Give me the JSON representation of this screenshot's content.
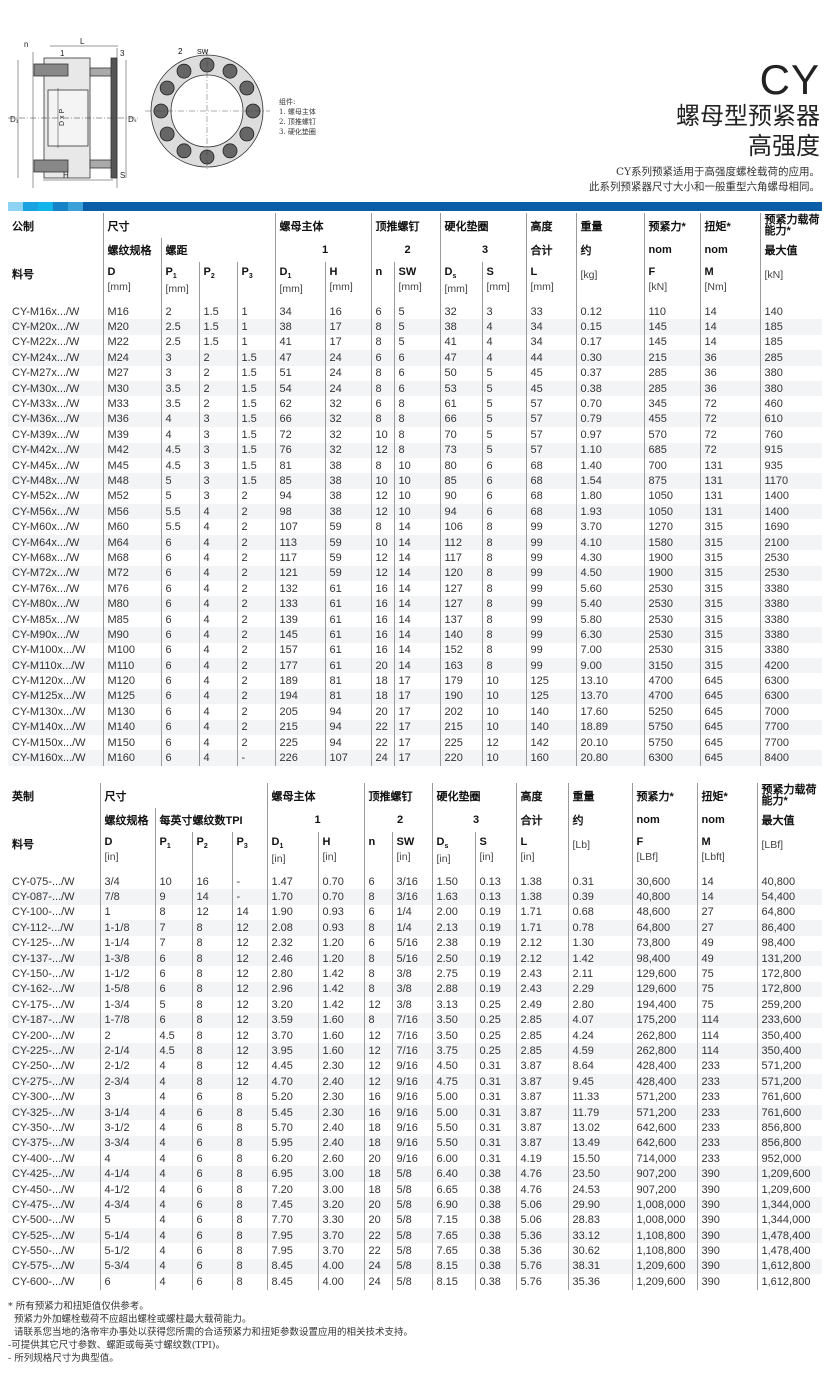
{
  "header": {
    "series": "CY",
    "title": "螺母型预紧器",
    "subtitle": "高强度",
    "description": [
      "CY系列预紧适用于高强度螺栓载荷的应用。",
      "此系列预紧器尺寸大小和一般重型六角螺母相同。"
    ]
  },
  "drawing": {
    "labels": {
      "n": "n",
      "L": "L",
      "one": "1",
      "three": "3",
      "two": "2",
      "SW": "SW",
      "D1": "D₁",
      "DxP": "D x P",
      "Ds": "Dₛ",
      "H": "H",
      "S": "S"
    },
    "legend": [
      "组件:",
      "1. 螺母主体",
      "2. 顶推螺钉",
      "3. 硬化垫圈"
    ]
  },
  "colors": {
    "brand_blue": "#0a5ea8",
    "bar_segments": [
      "#8fd3f4",
      "#1aa3e0",
      "#12b4ea",
      "#1583c6",
      "#3aa0d8"
    ]
  },
  "metric": {
    "h1": [
      "公制",
      "尺寸",
      "螺母主体",
      "顶推螺钉",
      "硬化垫圈",
      "高度",
      "重量",
      "预紧力*",
      "扭矩*",
      "预紧力载荷能力*"
    ],
    "h2": [
      "",
      "螺纹规格",
      "螺距",
      "1",
      "2",
      "3",
      "合计",
      "约",
      "nom",
      "nom",
      "最大值"
    ],
    "h3": [
      {
        "s": "料号"
      },
      {
        "s": "D",
        "u": "[mm]"
      },
      {
        "s": "P",
        "b": "1",
        "u": "[mm]"
      },
      {
        "s": "P",
        "b": "2"
      },
      {
        "s": "P",
        "b": "3"
      },
      {
        "s": "D",
        "b": "1",
        "u": "[mm]"
      },
      {
        "s": "H",
        "u": "[mm]"
      },
      {
        "s": "n"
      },
      {
        "s": "SW",
        "u": "[mm]"
      },
      {
        "s": "D",
        "b": "s",
        "u": "[mm]"
      },
      {
        "s": "S",
        "u": "[mm]"
      },
      {
        "s": "L",
        "u": "[mm]"
      },
      {
        "s": "",
        "u": "[kg]"
      },
      {
        "s": "F",
        "u": "[kN]"
      },
      {
        "s": "M",
        "u": "[Nm]"
      },
      {
        "s": "",
        "u": "[kN]"
      }
    ],
    "rows": [
      [
        "CY-M16x.../W",
        "M16",
        "2",
        "1.5",
        "1",
        "34",
        "16",
        "6",
        "5",
        "32",
        "3",
        "33",
        "0.12",
        "110",
        "14",
        "140"
      ],
      [
        "CY-M20x.../W",
        "M20",
        "2.5",
        "1.5",
        "1",
        "38",
        "17",
        "8",
        "5",
        "38",
        "4",
        "34",
        "0.15",
        "145",
        "14",
        "185"
      ],
      [
        "CY-M22x.../W",
        "M22",
        "2.5",
        "1.5",
        "1",
        "41",
        "17",
        "8",
        "5",
        "41",
        "4",
        "34",
        "0.17",
        "145",
        "14",
        "185"
      ],
      [
        "CY-M24x.../W",
        "M24",
        "3",
        "2",
        "1.5",
        "47",
        "24",
        "6",
        "6",
        "47",
        "4",
        "44",
        "0.30",
        "215",
        "36",
        "285"
      ],
      [
        "CY-M27x.../W",
        "M27",
        "3",
        "2",
        "1.5",
        "51",
        "24",
        "8",
        "6",
        "50",
        "5",
        "45",
        "0.37",
        "285",
        "36",
        "380"
      ],
      [
        "CY-M30x.../W",
        "M30",
        "3.5",
        "2",
        "1.5",
        "54",
        "24",
        "8",
        "6",
        "53",
        "5",
        "45",
        "0.38",
        "285",
        "36",
        "380"
      ],
      [
        "CY-M33x.../W",
        "M33",
        "3.5",
        "2",
        "1.5",
        "62",
        "32",
        "6",
        "8",
        "61",
        "5",
        "57",
        "0.70",
        "345",
        "72",
        "460"
      ],
      [
        "CY-M36x.../W",
        "M36",
        "4",
        "3",
        "1.5",
        "66",
        "32",
        "8",
        "8",
        "66",
        "5",
        "57",
        "0.79",
        "455",
        "72",
        "610"
      ],
      [
        "CY-M39x.../W",
        "M39",
        "4",
        "3",
        "1.5",
        "72",
        "32",
        "10",
        "8",
        "70",
        "5",
        "57",
        "0.97",
        "570",
        "72",
        "760"
      ],
      [
        "CY-M42x.../W",
        "M42",
        "4.5",
        "3",
        "1.5",
        "76",
        "32",
        "12",
        "8",
        "73",
        "5",
        "57",
        "1.10",
        "685",
        "72",
        "915"
      ],
      [
        "CY-M45x.../W",
        "M45",
        "4.5",
        "3",
        "1.5",
        "81",
        "38",
        "8",
        "10",
        "80",
        "6",
        "68",
        "1.40",
        "700",
        "131",
        "935"
      ],
      [
        "CY-M48x.../W",
        "M48",
        "5",
        "3",
        "1.5",
        "85",
        "38",
        "10",
        "10",
        "85",
        "6",
        "68",
        "1.54",
        "875",
        "131",
        "1170"
      ],
      [
        "CY-M52x.../W",
        "M52",
        "5",
        "3",
        "2",
        "94",
        "38",
        "12",
        "10",
        "90",
        "6",
        "68",
        "1.80",
        "1050",
        "131",
        "1400"
      ],
      [
        "CY-M56x.../W",
        "M56",
        "5.5",
        "4",
        "2",
        "98",
        "38",
        "12",
        "10",
        "94",
        "6",
        "68",
        "1.93",
        "1050",
        "131",
        "1400"
      ],
      [
        "CY-M60x.../W",
        "M60",
        "5.5",
        "4",
        "2",
        "107",
        "59",
        "8",
        "14",
        "106",
        "8",
        "99",
        "3.70",
        "1270",
        "315",
        "1690"
      ],
      [
        "CY-M64x.../W",
        "M64",
        "6",
        "4",
        "2",
        "113",
        "59",
        "10",
        "14",
        "112",
        "8",
        "99",
        "4.10",
        "1580",
        "315",
        "2100"
      ],
      [
        "CY-M68x.../W",
        "M68",
        "6",
        "4",
        "2",
        "117",
        "59",
        "12",
        "14",
        "117",
        "8",
        "99",
        "4.30",
        "1900",
        "315",
        "2530"
      ],
      [
        "CY-M72x.../W",
        "M72",
        "6",
        "4",
        "2",
        "121",
        "59",
        "12",
        "14",
        "120",
        "8",
        "99",
        "4.50",
        "1900",
        "315",
        "2530"
      ],
      [
        "CY-M76x.../W",
        "M76",
        "6",
        "4",
        "2",
        "132",
        "61",
        "16",
        "14",
        "127",
        "8",
        "99",
        "5.60",
        "2530",
        "315",
        "3380"
      ],
      [
        "CY-M80x.../W",
        "M80",
        "6",
        "4",
        "2",
        "133",
        "61",
        "16",
        "14",
        "127",
        "8",
        "99",
        "5.40",
        "2530",
        "315",
        "3380"
      ],
      [
        "CY-M85x.../W",
        "M85",
        "6",
        "4",
        "2",
        "139",
        "61",
        "16",
        "14",
        "137",
        "8",
        "99",
        "5.80",
        "2530",
        "315",
        "3380"
      ],
      [
        "CY-M90x.../W",
        "M90",
        "6",
        "4",
        "2",
        "145",
        "61",
        "16",
        "14",
        "140",
        "8",
        "99",
        "6.30",
        "2530",
        "315",
        "3380"
      ],
      [
        "CY-M100x.../W",
        "M100",
        "6",
        "4",
        "2",
        "157",
        "61",
        "16",
        "14",
        "152",
        "8",
        "99",
        "7.00",
        "2530",
        "315",
        "3380"
      ],
      [
        "CY-M110x.../W",
        "M110",
        "6",
        "4",
        "2",
        "177",
        "61",
        "20",
        "14",
        "163",
        "8",
        "99",
        "9.00",
        "3150",
        "315",
        "4200"
      ],
      [
        "CY-M120x.../W",
        "M120",
        "6",
        "4",
        "2",
        "189",
        "81",
        "18",
        "17",
        "179",
        "10",
        "125",
        "13.10",
        "4700",
        "645",
        "6300"
      ],
      [
        "CY-M125x.../W",
        "M125",
        "6",
        "4",
        "2",
        "194",
        "81",
        "18",
        "17",
        "190",
        "10",
        "125",
        "13.70",
        "4700",
        "645",
        "6300"
      ],
      [
        "CY-M130x.../W",
        "M130",
        "6",
        "4",
        "2",
        "205",
        "94",
        "20",
        "17",
        "202",
        "10",
        "140",
        "17.60",
        "5250",
        "645",
        "7000"
      ],
      [
        "CY-M140x.../W",
        "M140",
        "6",
        "4",
        "2",
        "215",
        "94",
        "22",
        "17",
        "215",
        "10",
        "140",
        "18.89",
        "5750",
        "645",
        "7700"
      ],
      [
        "CY-M150x.../W",
        "M150",
        "6",
        "4",
        "2",
        "225",
        "94",
        "22",
        "17",
        "225",
        "12",
        "142",
        "20.10",
        "5750",
        "645",
        "7700"
      ],
      [
        "CY-M160x.../W",
        "M160",
        "6",
        "4",
        "-",
        "226",
        "107",
        "24",
        "17",
        "220",
        "10",
        "160",
        "20.80",
        "6300",
        "645",
        "8400"
      ]
    ]
  },
  "imperial": {
    "h1": [
      "英制",
      "尺寸",
      "螺母主体",
      "顶推螺钉",
      "硬化垫圈",
      "高度",
      "重量",
      "预紧力*",
      "扭矩*",
      "预紧力载荷能力*"
    ],
    "h2": [
      "",
      "螺纹规格",
      "每英寸螺纹数TPI",
      "1",
      "2",
      "3",
      "合计",
      "约",
      "nom",
      "nom",
      "最大值"
    ],
    "h3": [
      {
        "s": "料号"
      },
      {
        "s": "D",
        "u": "[in]"
      },
      {
        "s": "P",
        "b": "1"
      },
      {
        "s": "P",
        "b": "2"
      },
      {
        "s": "P",
        "b": "3"
      },
      {
        "s": "D",
        "b": "1",
        "u": "[in]"
      },
      {
        "s": "H",
        "u": "[in]"
      },
      {
        "s": "n"
      },
      {
        "s": "SW",
        "u": "[in]"
      },
      {
        "s": "D",
        "b": "s",
        "u": "[in]"
      },
      {
        "s": "S",
        "u": "[in]"
      },
      {
        "s": "L",
        "u": "[in]"
      },
      {
        "s": "",
        "u": "[Lb]"
      },
      {
        "s": "F",
        "u": "[LBf]"
      },
      {
        "s": "M",
        "u": "[Lbft]"
      },
      {
        "s": "",
        "u": "[LBf]"
      }
    ],
    "rows": [
      [
        "CY-075-.../W",
        "3/4",
        "10",
        "16",
        "-",
        "1.47",
        "0.70",
        "6",
        "3/16",
        "1.50",
        "0.13",
        "1.38",
        "0.31",
        "30,600",
        "14",
        "40,800"
      ],
      [
        "CY-087-.../W",
        "7/8",
        "9",
        "14",
        "-",
        "1.70",
        "0.70",
        "8",
        "3/16",
        "1.63",
        "0.13",
        "1.38",
        "0.39",
        "40,800",
        "14",
        "54,400"
      ],
      [
        "CY-100-.../W",
        "1",
        "8",
        "12",
        "14",
        "1.90",
        "0.93",
        "6",
        "1/4",
        "2.00",
        "0.19",
        "1.71",
        "0.68",
        "48,600",
        "27",
        "64,800"
      ],
      [
        "CY-112-.../W",
        "1-1/8",
        "7",
        "8",
        "12",
        "2.08",
        "0.93",
        "8",
        "1/4",
        "2.13",
        "0.19",
        "1.71",
        "0.78",
        "64,800",
        "27",
        "86,400"
      ],
      [
        "CY-125-.../W",
        "1-1/4",
        "7",
        "8",
        "12",
        "2.32",
        "1.20",
        "6",
        "5/16",
        "2.38",
        "0.19",
        "2.12",
        "1.30",
        "73,800",
        "49",
        "98,400"
      ],
      [
        "CY-137-.../W",
        "1-3/8",
        "6",
        "8",
        "12",
        "2.46",
        "1.20",
        "8",
        "5/16",
        "2.50",
        "0.19",
        "2.12",
        "1.42",
        "98,400",
        "49",
        "131,200"
      ],
      [
        "CY-150-.../W",
        "1-1/2",
        "6",
        "8",
        "12",
        "2.80",
        "1.42",
        "8",
        "3/8",
        "2.75",
        "0.19",
        "2.43",
        "2.11",
        "129,600",
        "75",
        "172,800"
      ],
      [
        "CY-162-.../W",
        "1-5/8",
        "6",
        "8",
        "12",
        "2.96",
        "1.42",
        "8",
        "3/8",
        "2.88",
        "0.19",
        "2.43",
        "2.29",
        "129,600",
        "75",
        "172,800"
      ],
      [
        "CY-175-.../W",
        "1-3/4",
        "5",
        "8",
        "12",
        "3.20",
        "1.42",
        "12",
        "3/8",
        "3.13",
        "0.25",
        "2.49",
        "2.80",
        "194,400",
        "75",
        "259,200"
      ],
      [
        "CY-187-.../W",
        "1-7/8",
        "6",
        "8",
        "12",
        "3.59",
        "1.60",
        "8",
        "7/16",
        "3.50",
        "0.25",
        "2.85",
        "4.07",
        "175,200",
        "114",
        "233,600"
      ],
      [
        "CY-200-.../W",
        "2",
        "4.5",
        "8",
        "12",
        "3.70",
        "1.60",
        "12",
        "7/16",
        "3.50",
        "0.25",
        "2.85",
        "4.24",
        "262,800",
        "114",
        "350,400"
      ],
      [
        "CY-225-.../W",
        "2-1/4",
        "4.5",
        "8",
        "12",
        "3.95",
        "1.60",
        "12",
        "7/16",
        "3.75",
        "0.25",
        "2.85",
        "4.59",
        "262,800",
        "114",
        "350,400"
      ],
      [
        "CY-250-.../W",
        "2-1/2",
        "4",
        "8",
        "12",
        "4.45",
        "2.30",
        "12",
        "9/16",
        "4.50",
        "0.31",
        "3.87",
        "8.64",
        "428,400",
        "233",
        "571,200"
      ],
      [
        "CY-275-.../W",
        "2-3/4",
        "4",
        "8",
        "12",
        "4.70",
        "2.40",
        "12",
        "9/16",
        "4.75",
        "0.31",
        "3.87",
        "9.45",
        "428,400",
        "233",
        "571,200"
      ],
      [
        "CY-300-.../W",
        "3",
        "4",
        "6",
        "8",
        "5.20",
        "2.30",
        "16",
        "9/16",
        "5.00",
        "0.31",
        "3.87",
        "11.33",
        "571,200",
        "233",
        "761,600"
      ],
      [
        "CY-325-.../W",
        "3-1/4",
        "4",
        "6",
        "8",
        "5.45",
        "2.30",
        "16",
        "9/16",
        "5.00",
        "0.31",
        "3.87",
        "11.79",
        "571,200",
        "233",
        "761,600"
      ],
      [
        "CY-350-.../W",
        "3-1/2",
        "4",
        "6",
        "8",
        "5.70",
        "2.40",
        "18",
        "9/16",
        "5.50",
        "0.31",
        "3.87",
        "13.02",
        "642,600",
        "233",
        "856,800"
      ],
      [
        "CY-375-.../W",
        "3-3/4",
        "4",
        "6",
        "8",
        "5.95",
        "2.40",
        "18",
        "9/16",
        "5.50",
        "0.31",
        "3.87",
        "13.49",
        "642,600",
        "233",
        "856,800"
      ],
      [
        "CY-400-.../W",
        "4",
        "4",
        "6",
        "8",
        "6.20",
        "2.60",
        "20",
        "9/16",
        "6.00",
        "0.31",
        "4.19",
        "15.50",
        "714,000",
        "233",
        "952,000"
      ],
      [
        "CY-425-.../W",
        "4-1/4",
        "4",
        "6",
        "8",
        "6.95",
        "3.00",
        "18",
        "5/8",
        "6.40",
        "0.38",
        "4.76",
        "23.50",
        "907,200",
        "390",
        "1,209,600"
      ],
      [
        "CY-450-.../W",
        "4-1/2",
        "4",
        "6",
        "8",
        "7.20",
        "3.00",
        "18",
        "5/8",
        "6.65",
        "0.38",
        "4.76",
        "24.53",
        "907,200",
        "390",
        "1,209,600"
      ],
      [
        "CY-475-.../W",
        "4-3/4",
        "4",
        "6",
        "8",
        "7.45",
        "3.20",
        "20",
        "5/8",
        "6.90",
        "0.38",
        "5.06",
        "29.90",
        "1,008,000",
        "390",
        "1,344,000"
      ],
      [
        "CY-500-.../W",
        "5",
        "4",
        "6",
        "8",
        "7.70",
        "3.30",
        "20",
        "5/8",
        "7.15",
        "0.38",
        "5.06",
        "28.83",
        "1,008,000",
        "390",
        "1,344,000"
      ],
      [
        "CY-525-.../W",
        "5-1/4",
        "4",
        "6",
        "8",
        "7.95",
        "3.70",
        "22",
        "5/8",
        "7.65",
        "0.38",
        "5.36",
        "33.12",
        "1,108,800",
        "390",
        "1,478,400"
      ],
      [
        "CY-550-.../W",
        "5-1/2",
        "4",
        "6",
        "8",
        "7.95",
        "3.70",
        "22",
        "5/8",
        "7.65",
        "0.38",
        "5.36",
        "30.62",
        "1,108,800",
        "390",
        "1,478,400"
      ],
      [
        "CY-575-.../W",
        "5-3/4",
        "4",
        "6",
        "8",
        "8.45",
        "4.00",
        "24",
        "5/8",
        "8.15",
        "0.38",
        "5.76",
        "38.31",
        "1,209,600",
        "390",
        "1,612,800"
      ],
      [
        "CY-600-.../W",
        "6",
        "4",
        "6",
        "8",
        "8.45",
        "4.00",
        "24",
        "5/8",
        "8.15",
        "0.38",
        "5.76",
        "35.36",
        "1,209,600",
        "390",
        "1,612,800"
      ]
    ]
  },
  "footnotes": [
    "* 所有预紧力和扭矩值仅供参考。",
    "  预紧力外加螺栓载荷不应超出螺栓或螺柱最大载荷能力。",
    "  请联系您当地的洛帝牢办事处以获得您所需的合适预紧力和扭矩参数设置应用的相关技术支持。",
    "-可提供其它尺寸参数、螺距或每英寸螺纹数(TPI)。",
    "- 所列规格尺寸为典型值。"
  ]
}
